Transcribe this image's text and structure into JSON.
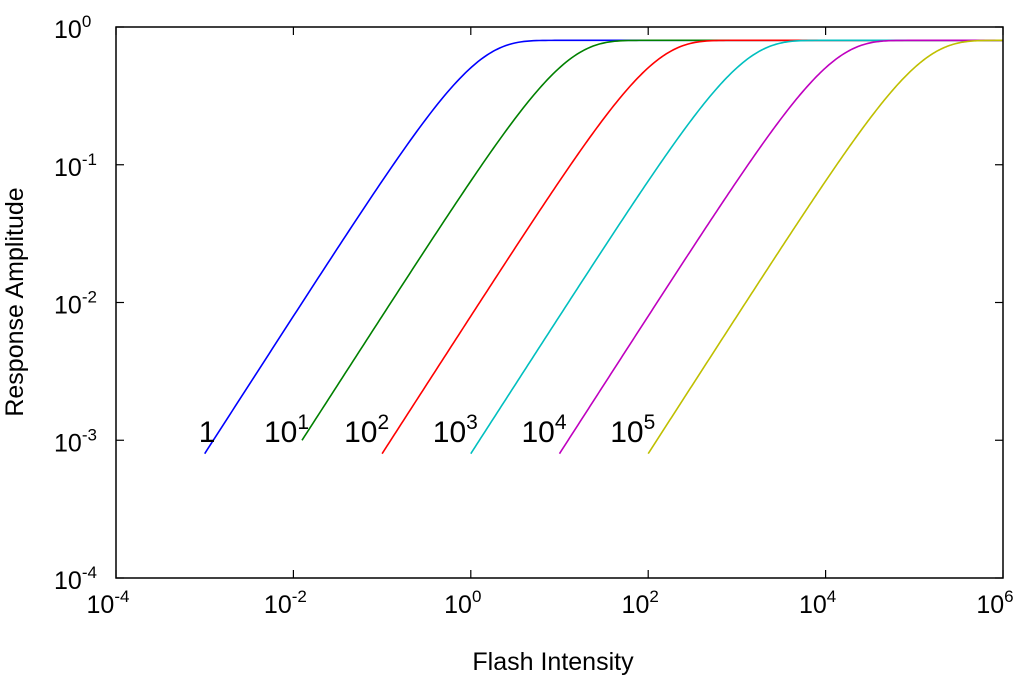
{
  "chart_data": {
    "type": "line",
    "xscale": "log",
    "yscale": "log",
    "xlim": [
      0.0001,
      1000000
    ],
    "ylim": [
      0.0001,
      1
    ],
    "xlabel": "Flash Intensity",
    "ylabel": "Response Amplitude",
    "grid": false,
    "legend": "none",
    "x_ticks": [
      {
        "base": "10",
        "exp": "-4",
        "value": 0.0001
      },
      {
        "base": "10",
        "exp": "-2",
        "value": 0.01
      },
      {
        "base": "10",
        "exp": "0",
        "value": 1
      },
      {
        "base": "10",
        "exp": "2",
        "value": 100
      },
      {
        "base": "10",
        "exp": "4",
        "value": 10000
      },
      {
        "base": "10",
        "exp": "6",
        "value": 1000000
      }
    ],
    "y_ticks": [
      {
        "base": "10",
        "exp": "-4",
        "value": 0.0001
      },
      {
        "base": "10",
        "exp": "-3",
        "value": 0.001
      },
      {
        "base": "10",
        "exp": "-2",
        "value": 0.01
      },
      {
        "base": "10",
        "exp": "-1",
        "value": 0.1
      },
      {
        "base": "10",
        "exp": "0",
        "value": 1
      }
    ],
    "rmax": 0.8,
    "series": [
      {
        "label_base": "1",
        "label_exp": "",
        "sigma": 1,
        "xstart": 0.001,
        "color": "#0000ff"
      },
      {
        "label_base": "10",
        "label_exp": "1",
        "sigma": 10,
        "xstart": 0.0125,
        "color": "#008000"
      },
      {
        "label_base": "10",
        "label_exp": "2",
        "sigma": 100,
        "xstart": 0.1,
        "color": "#ff0000"
      },
      {
        "label_base": "10",
        "label_exp": "3",
        "sigma": 1000,
        "xstart": 1,
        "color": "#00bfbf"
      },
      {
        "label_base": "10",
        "label_exp": "4",
        "sigma": 10000,
        "xstart": 10,
        "color": "#bf00bf"
      },
      {
        "label_base": "10",
        "label_exp": "5",
        "sigma": 100000,
        "xstart": 100,
        "color": "#bfbf00"
      }
    ]
  }
}
